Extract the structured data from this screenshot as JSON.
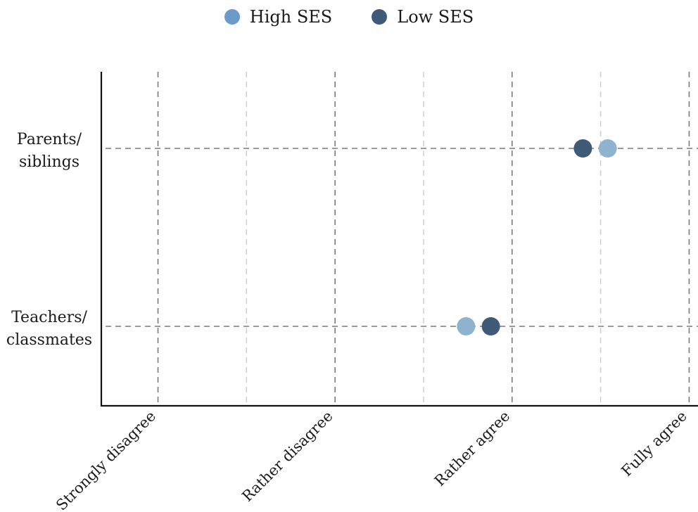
{
  "chart_data": {
    "type": "scatter",
    "orientation": "dot-plot",
    "categories": [
      "Parents/ siblings",
      "Teachers/ classmates"
    ],
    "category_lines": [
      [
        "Parents/",
        "siblings"
      ],
      [
        "Teachers/",
        "classmates"
      ]
    ],
    "scale_labels": [
      "Strongly disagree",
      "Rather disagree",
      "Rather agree",
      "Fully agree"
    ],
    "xlim": [
      0.68,
      4.05
    ],
    "grid": true,
    "legend_position": "top",
    "series": [
      {
        "name": "High SES",
        "color": "#8fb3cf",
        "legend_color": "#6b9bc8",
        "values": [
          3.54,
          2.74
        ]
      },
      {
        "name": "Low SES",
        "color": "#3f5b78",
        "legend_color": "#3f5b78",
        "values": [
          3.4,
          2.88
        ]
      }
    ]
  }
}
